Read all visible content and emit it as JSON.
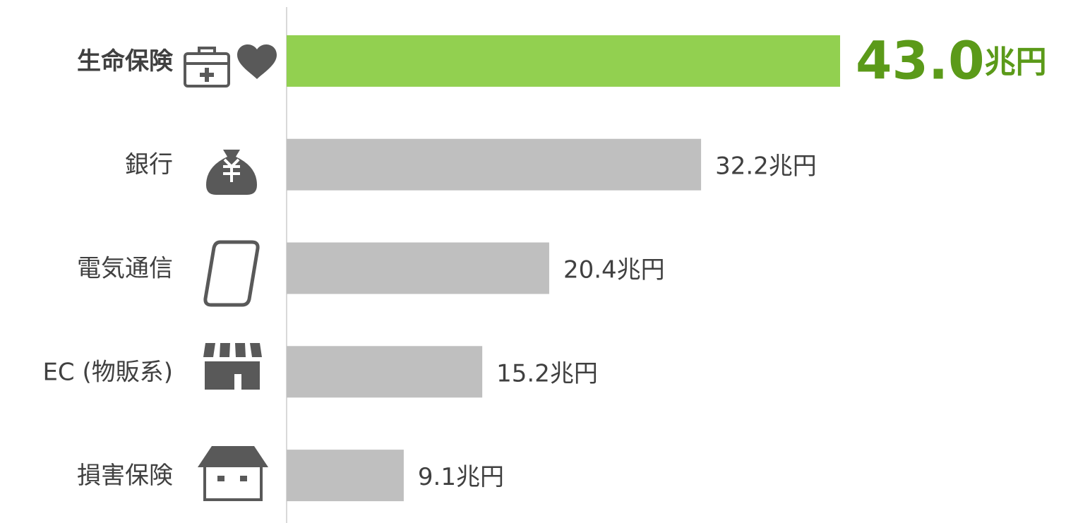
{
  "chart_data": {
    "type": "barh",
    "categories": [
      "生命保険",
      "銀行",
      "電気通信",
      "EC (物販系)",
      "損害保険"
    ],
    "values": [
      43.0,
      32.2,
      20.4,
      15.2,
      9.1
    ],
    "value_labels": [
      "43.0兆円",
      "32.2兆円",
      "20.4兆円",
      "15.2兆円",
      "9.1兆円"
    ],
    "colors": [
      "#92d050",
      "#bfbfbf",
      "#bfbfbf",
      "#bfbfbf",
      "#bfbfbf"
    ],
    "label_colors": [
      "#5b9a19",
      "#404040",
      "#404040",
      "#404040",
      "#404040"
    ]
  }
}
